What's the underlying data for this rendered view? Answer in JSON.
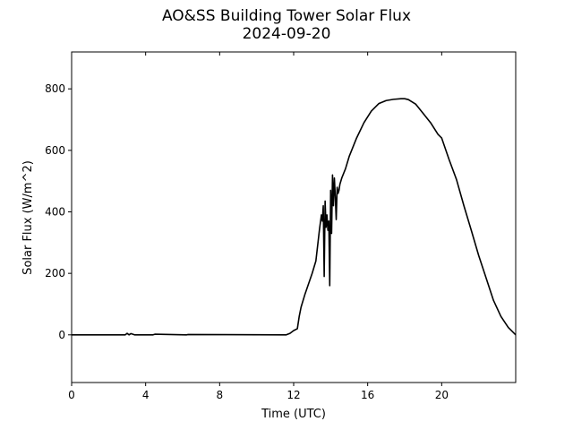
{
  "chart_data": {
    "type": "line",
    "title": "AO&SS Building Tower Solar Flux",
    "subtitle": "2024-09-20",
    "xlabel": "Time (UTC)",
    "ylabel": "Solar Flux (W/m^2)",
    "xlim": [
      0,
      24
    ],
    "ylim": [
      -155,
      920
    ],
    "xticks": [
      0,
      4,
      8,
      12,
      16,
      20
    ],
    "yticks": [
      0,
      200,
      400,
      600,
      800
    ],
    "grid": false,
    "line_color": "#000000",
    "series": [
      {
        "x": [
          0,
          2.9,
          3.0,
          3.1,
          3.2,
          3.4,
          4.4,
          4.5,
          6.2,
          6.3,
          11.6,
          11.8,
          12.0,
          12.2,
          12.3,
          12.4,
          12.6,
          12.8,
          13.0,
          13.2,
          13.4,
          13.5,
          13.55,
          13.6,
          13.65,
          13.7,
          13.75,
          13.8,
          13.85,
          13.9,
          13.95,
          14.0,
          14.05,
          14.1,
          14.15,
          14.2,
          14.25,
          14.3,
          14.35,
          14.4,
          14.45,
          14.5,
          14.6,
          14.8,
          15.0,
          15.4,
          15.8,
          16.2,
          16.6,
          17.0,
          17.4,
          17.8,
          18.0,
          18.2,
          18.6,
          19.0,
          19.4,
          19.8,
          20.0,
          20.4,
          20.8,
          21.2,
          21.6,
          22.0,
          22.4,
          22.8,
          23.2,
          23.6,
          24.0
        ],
        "y": [
          0,
          0,
          5,
          0,
          4,
          0,
          0,
          2,
          0,
          1,
          0,
          5,
          14,
          20,
          60,
          90,
          130,
          165,
          200,
          240,
          345,
          390,
          370,
          420,
          190,
          435,
          350,
          390,
          340,
          370,
          160,
          470,
          330,
          520,
          420,
          510,
          450,
          375,
          480,
          460,
          470,
          490,
          510,
          540,
          580,
          640,
          690,
          728,
          752,
          762,
          766,
          768,
          768,
          765,
          750,
          720,
          690,
          652,
          640,
          570,
          505,
          420,
          340,
          258,
          185,
          112,
          60,
          24,
          0
        ]
      }
    ]
  }
}
